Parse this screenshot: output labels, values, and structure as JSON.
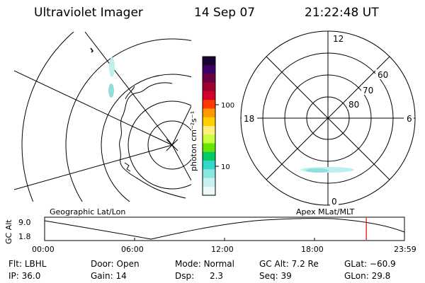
{
  "header": {
    "instrument": "Ultraviolet Imager",
    "date": "14 Sep 07",
    "time": "21:22:48 UT"
  },
  "geo_panel": {
    "label": "Geographic Lat/Lon"
  },
  "polar_panel": {
    "label": "Apex MLat/MLT",
    "mlt_labels": {
      "top": "12",
      "left": "18",
      "right": "6",
      "bottom": "0"
    },
    "lat_labels": [
      "80",
      "70",
      "60"
    ]
  },
  "colorbar": {
    "unit_label": "photon cm⁻²s⁻¹",
    "ticks": [
      "100",
      "10"
    ],
    "colors": [
      "#1a0033",
      "#3d0066",
      "#6a0040",
      "#a00030",
      "#d0002a",
      "#ff3a00",
      "#ff9900",
      "#ffd000",
      "#fff07a",
      "#c8ff40",
      "#66e600",
      "#00cc66",
      "#33d6c8",
      "#8ae6e0",
      "#c8f0ee",
      "#eef8f8"
    ]
  },
  "altitude_plot": {
    "ylabel": "GC Alt",
    "y_ticks": [
      "9.0",
      "1.8"
    ],
    "x_ticks": [
      "00:00",
      "06:00",
      "12:00",
      "18:00",
      "23:59"
    ],
    "marker_color": "#e00000",
    "current_time_fraction": 0.894
  },
  "info": {
    "row1": [
      {
        "label": "Flt:",
        "value": "LBHL"
      },
      {
        "label": "Door:",
        "value": "Open"
      },
      {
        "label": "Mode:",
        "value": "Normal"
      },
      {
        "label": "GC Alt:",
        "value": "7.2 Re"
      },
      {
        "label": "GLat:",
        "value": "−60.9"
      }
    ],
    "row2": [
      {
        "label": "IP:",
        "value": "36.0"
      },
      {
        "label": "Gain:",
        "value": "14"
      },
      {
        "label": "Dsp:",
        "value": "2.3"
      },
      {
        "label": "Seq:",
        "value": "39"
      },
      {
        "label": "GLon:",
        "value": "29.8"
      }
    ]
  }
}
